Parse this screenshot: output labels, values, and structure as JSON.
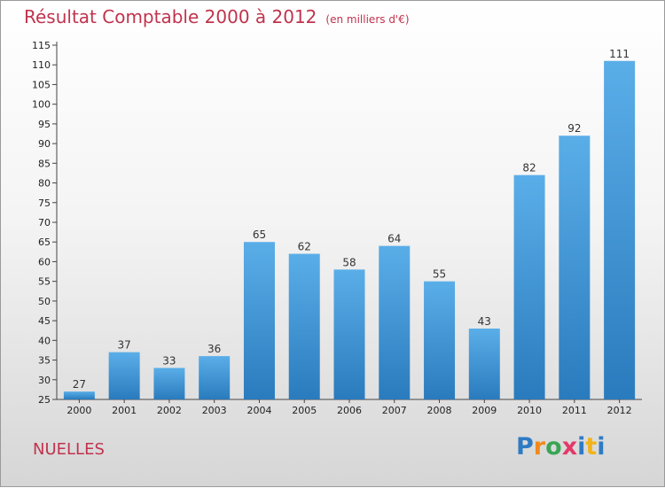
{
  "title": "Résultat Comptable 2000 à 2012",
  "unit": "(en milliers d'€)",
  "location": "NUELLES",
  "brand": {
    "letters": [
      "P",
      "r",
      "o",
      "x",
      "i",
      "t",
      "i"
    ]
  },
  "colors": {
    "bar_light": "#5aaee8",
    "bar_dark": "#2a7bbd",
    "title": "#c0334d"
  },
  "chart_data": {
    "type": "bar",
    "categories": [
      "2000",
      "2001",
      "2002",
      "2003",
      "2004",
      "2005",
      "2006",
      "2007",
      "2008",
      "2009",
      "2010",
      "2011",
      "2012"
    ],
    "values": [
      27,
      37,
      33,
      36,
      65,
      62,
      58,
      64,
      55,
      43,
      82,
      92,
      111
    ],
    "ylim": [
      25,
      115
    ],
    "yticks": [
      25,
      30,
      35,
      40,
      45,
      50,
      55,
      60,
      65,
      70,
      75,
      80,
      85,
      90,
      95,
      100,
      105,
      110,
      115
    ],
    "grid": false,
    "legend": "none"
  }
}
